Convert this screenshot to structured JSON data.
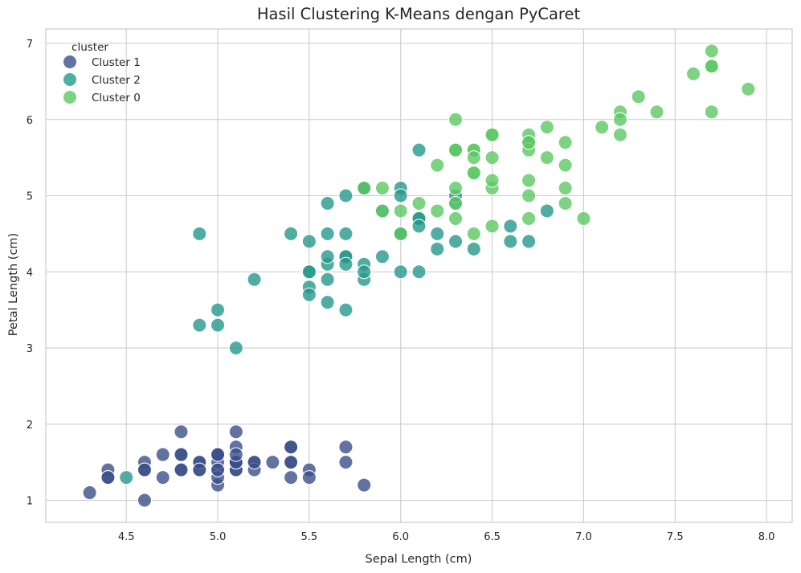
{
  "chart_data": {
    "type": "scatter",
    "title": "Hasil Clustering K-Means dengan PyCaret",
    "xlabel": "Sepal Length (cm)",
    "ylabel": "Petal Length (cm)",
    "xlim": [
      4.06,
      8.14
    ],
    "ylim": [
      0.71,
      7.19
    ],
    "xticks": [
      "4.5",
      "5.0",
      "5.5",
      "6.0",
      "6.5",
      "7.0",
      "7.5",
      "8.0"
    ],
    "yticks": [
      "1",
      "2",
      "3",
      "4",
      "5",
      "6",
      "7"
    ],
    "grid": true,
    "legend": {
      "title": "cluster",
      "position": "top-left"
    },
    "series": [
      {
        "name": "Cluster 1",
        "color": "#3b4f8a",
        "points": [
          [
            5.1,
            1.4
          ],
          [
            4.9,
            1.4
          ],
          [
            4.7,
            1.3
          ],
          [
            4.6,
            1.5
          ],
          [
            5.0,
            1.4
          ],
          [
            5.4,
            1.7
          ],
          [
            4.6,
            1.4
          ],
          [
            5.0,
            1.5
          ],
          [
            4.4,
            1.4
          ],
          [
            4.9,
            1.5
          ],
          [
            5.4,
            1.5
          ],
          [
            4.8,
            1.6
          ],
          [
            4.8,
            1.4
          ],
          [
            4.3,
            1.1
          ],
          [
            5.8,
            1.2
          ],
          [
            5.7,
            1.5
          ],
          [
            5.4,
            1.3
          ],
          [
            5.1,
            1.4
          ],
          [
            5.7,
            1.7
          ],
          [
            5.1,
            1.5
          ],
          [
            5.4,
            1.7
          ],
          [
            5.1,
            1.5
          ],
          [
            4.6,
            1.0
          ],
          [
            5.1,
            1.7
          ],
          [
            4.8,
            1.9
          ],
          [
            5.0,
            1.6
          ],
          [
            5.0,
            1.6
          ],
          [
            5.2,
            1.5
          ],
          [
            5.2,
            1.4
          ],
          [
            4.7,
            1.6
          ],
          [
            4.8,
            1.6
          ],
          [
            5.4,
            1.5
          ],
          [
            5.2,
            1.5
          ],
          [
            5.5,
            1.4
          ],
          [
            4.9,
            1.5
          ],
          [
            5.0,
            1.2
          ],
          [
            5.5,
            1.3
          ],
          [
            4.9,
            1.4
          ],
          [
            4.4,
            1.3
          ],
          [
            5.1,
            1.5
          ],
          [
            5.0,
            1.3
          ],
          [
            4.4,
            1.3
          ],
          [
            5.0,
            1.6
          ],
          [
            5.1,
            1.9
          ],
          [
            4.8,
            1.4
          ],
          [
            5.1,
            1.6
          ],
          [
            4.6,
            1.4
          ],
          [
            5.3,
            1.5
          ],
          [
            5.0,
            1.4
          ]
        ]
      },
      {
        "name": "Cluster 2",
        "color": "#26988a",
        "points": [
          [
            4.5,
            1.3
          ],
          [
            5.5,
            4.0
          ],
          [
            5.7,
            4.5
          ],
          [
            4.9,
            3.3
          ],
          [
            6.6,
            4.6
          ],
          [
            5.2,
            3.9
          ],
          [
            5.0,
            3.5
          ],
          [
            5.9,
            4.2
          ],
          [
            6.0,
            4.0
          ],
          [
            6.1,
            4.7
          ],
          [
            5.6,
            3.6
          ],
          [
            6.7,
            4.4
          ],
          [
            5.6,
            4.5
          ],
          [
            5.8,
            4.1
          ],
          [
            6.2,
            4.5
          ],
          [
            5.6,
            3.9
          ],
          [
            5.9,
            4.8
          ],
          [
            6.1,
            4.0
          ],
          [
            6.3,
            4.9
          ],
          [
            6.1,
            4.7
          ],
          [
            6.4,
            4.3
          ],
          [
            6.6,
            4.4
          ],
          [
            6.8,
            4.8
          ],
          [
            6.0,
            4.5
          ],
          [
            5.7,
            3.5
          ],
          [
            5.5,
            3.8
          ],
          [
            5.5,
            3.7
          ],
          [
            5.8,
            3.9
          ],
          [
            6.0,
            5.1
          ],
          [
            5.4,
            4.5
          ],
          [
            6.0,
            4.5
          ],
          [
            6.3,
            4.4
          ],
          [
            5.6,
            4.1
          ],
          [
            5.5,
            4.0
          ],
          [
            5.5,
            4.4
          ],
          [
            6.1,
            4.6
          ],
          [
            5.8,
            4.0
          ],
          [
            5.0,
            3.3
          ],
          [
            5.6,
            4.2
          ],
          [
            5.7,
            4.2
          ],
          [
            5.7,
            4.2
          ],
          [
            6.2,
            4.3
          ],
          [
            5.1,
            3.0
          ],
          [
            5.7,
            4.1
          ],
          [
            5.8,
            5.1
          ],
          [
            4.9,
            4.5
          ],
          [
            5.7,
            5.0
          ],
          [
            5.6,
            4.9
          ],
          [
            6.0,
            5.0
          ],
          [
            6.3,
            5.0
          ],
          [
            5.8,
            5.1
          ],
          [
            6.1,
            5.6
          ]
        ]
      },
      {
        "name": "Cluster 0",
        "color": "#5cc863",
        "points": [
          [
            7.0,
            4.7
          ],
          [
            6.4,
            4.5
          ],
          [
            6.9,
            4.9
          ],
          [
            6.5,
            4.6
          ],
          [
            6.3,
            4.7
          ],
          [
            6.7,
            5.0
          ],
          [
            6.7,
            4.7
          ],
          [
            6.9,
            5.1
          ],
          [
            6.7,
            5.2
          ],
          [
            6.3,
            5.6
          ],
          [
            6.5,
            5.8
          ],
          [
            7.1,
            5.9
          ],
          [
            6.3,
            5.6
          ],
          [
            6.5,
            5.8
          ],
          [
            7.6,
            6.6
          ],
          [
            7.3,
            6.3
          ],
          [
            6.7,
            5.8
          ],
          [
            7.2,
            6.1
          ],
          [
            6.5,
            5.1
          ],
          [
            6.4,
            5.3
          ],
          [
            6.8,
            5.5
          ],
          [
            6.4,
            5.3
          ],
          [
            6.5,
            5.5
          ],
          [
            7.7,
            6.7
          ],
          [
            7.7,
            6.9
          ],
          [
            6.9,
            5.7
          ],
          [
            7.7,
            6.7
          ],
          [
            6.3,
            4.9
          ],
          [
            6.7,
            5.7
          ],
          [
            7.2,
            6.0
          ],
          [
            6.2,
            4.8
          ],
          [
            6.1,
            4.9
          ],
          [
            6.4,
            5.6
          ],
          [
            7.2,
            5.8
          ],
          [
            7.4,
            6.1
          ],
          [
            7.9,
            6.4
          ],
          [
            6.4,
            5.6
          ],
          [
            6.3,
            5.1
          ],
          [
            7.7,
            6.1
          ],
          [
            6.3,
            5.6
          ],
          [
            6.4,
            5.5
          ],
          [
            6.0,
            4.8
          ],
          [
            6.9,
            5.4
          ],
          [
            6.7,
            5.6
          ],
          [
            6.8,
            5.9
          ],
          [
            6.7,
            5.7
          ],
          [
            6.5,
            5.2
          ],
          [
            6.2,
            5.4
          ],
          [
            5.9,
            5.1
          ],
          [
            5.8,
            5.1
          ],
          [
            6.3,
            6.0
          ],
          [
            5.9,
            4.8
          ],
          [
            6.0,
            4.5
          ]
        ]
      }
    ]
  }
}
